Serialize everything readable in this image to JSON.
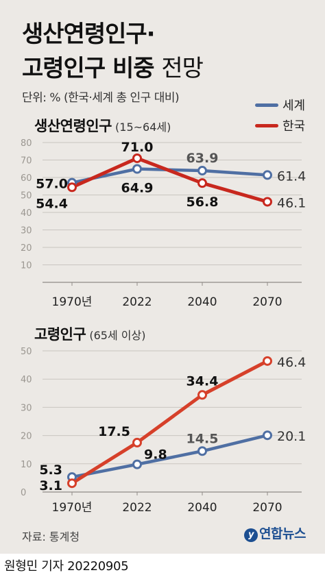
{
  "header": {
    "title_line1": "생산연령인구·",
    "title_line2_bold": "고령인구 비중",
    "title_line2_light": "전망",
    "unit": "단위: % (한국·세계 총 인구 대비)"
  },
  "legend": [
    {
      "label": "세계",
      "color": "#4f6fa3"
    },
    {
      "label": "한국",
      "color": "#c8281e"
    }
  ],
  "footer": {
    "source": "자료: 통계청",
    "logo": "연합뉴스",
    "byline": "원형민 기자  20220905"
  },
  "chart_data": [
    {
      "type": "line",
      "title": "생산연령인구",
      "subtitle": "(15~64세)",
      "categories": [
        "1970년",
        "2022",
        "2040",
        "2070"
      ],
      "ylim": [
        0,
        80
      ],
      "yticks": [
        10,
        20,
        30,
        40,
        50,
        60,
        70,
        80
      ],
      "grid": true,
      "series": [
        {
          "name": "세계",
          "color": "#4f6fa3",
          "values": [
            57.0,
            64.9,
            63.9,
            61.4
          ],
          "labels": [
            "57.0",
            "64.9",
            "63.9",
            "61.4"
          ]
        },
        {
          "name": "한국",
          "color": "#c8281e",
          "values": [
            54.4,
            71.0,
            56.8,
            46.1
          ],
          "labels": [
            "54.4",
            "71.0",
            "56.8",
            "46.1"
          ]
        }
      ]
    },
    {
      "type": "line",
      "title": "고령인구",
      "subtitle": "(65세 이상)",
      "categories": [
        "1970년",
        "2022",
        "2040",
        "2070"
      ],
      "ylim": [
        0,
        50
      ],
      "yticks": [
        0,
        10,
        20,
        30,
        40,
        50
      ],
      "grid": true,
      "series": [
        {
          "name": "세계",
          "color": "#4f6fa3",
          "values": [
            5.3,
            9.8,
            14.5,
            20.1
          ],
          "labels": [
            "5.3",
            "9.8",
            "14.5",
            "20.1"
          ]
        },
        {
          "name": "한국",
          "color": "#d6402a",
          "values": [
            3.1,
            17.5,
            34.4,
            46.4
          ],
          "labels": [
            "3.1",
            "17.5",
            "34.4",
            "46.4"
          ]
        }
      ]
    }
  ]
}
